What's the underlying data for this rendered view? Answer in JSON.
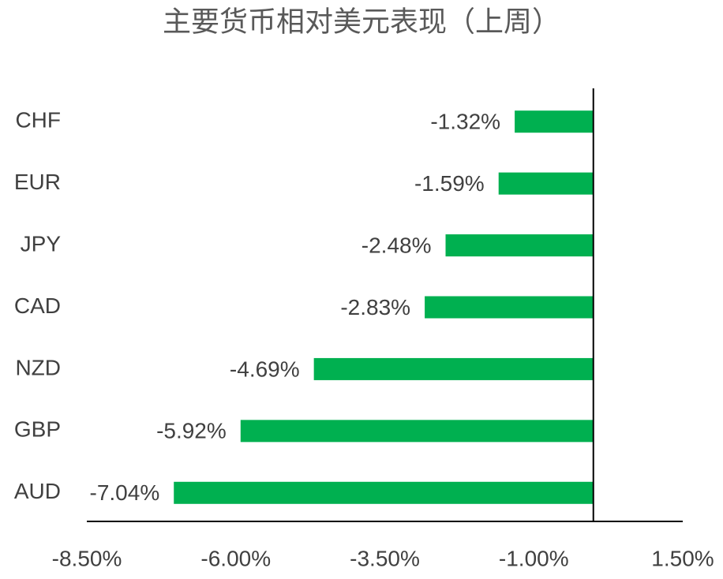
{
  "chart_data": {
    "type": "barh",
    "title": "主要货币相对美元表现（上周）",
    "categories": [
      "CHF",
      "EUR",
      "JPY",
      "CAD",
      "NZD",
      "GBP",
      "AUD"
    ],
    "values": [
      -1.32,
      -1.59,
      -2.48,
      -2.83,
      -4.69,
      -5.92,
      -7.04
    ],
    "value_labels": [
      "-1.32%",
      "-1.59%",
      "-2.48%",
      "-2.83%",
      "-4.69%",
      "-5.92%",
      "-7.04%"
    ],
    "color": "#00b050",
    "xlim": [
      -8.5,
      1.5
    ],
    "xticks": [
      {
        "value": -8.5,
        "label": "-8.50%"
      },
      {
        "value": -6,
        "label": "-6.00%"
      },
      {
        "value": -3.5,
        "label": "-3.50%"
      },
      {
        "value": -1,
        "label": "-1.00%"
      },
      {
        "value": 1.5,
        "label": "1.50%"
      }
    ],
    "grid": false
  }
}
